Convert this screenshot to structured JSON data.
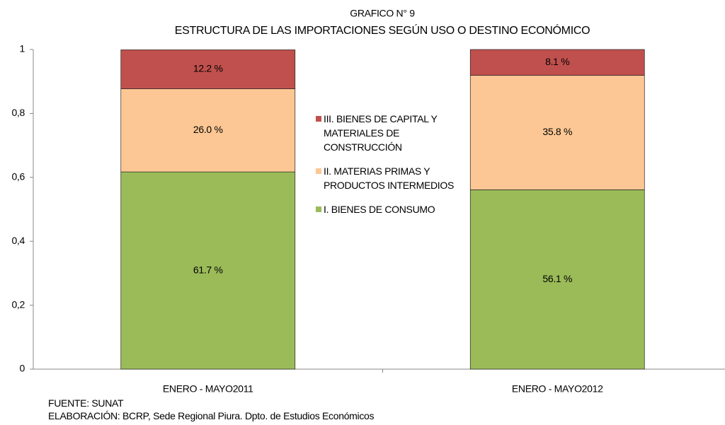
{
  "chart_data": {
    "type": "stacked_bar",
    "title": "GRAFICO N° 9",
    "subtitle": "ESTRUCTURA DE LAS IMPORTACIONES SEGÚN USO O DESTINO ECONÓMICO",
    "categories": [
      "ENERO - MAYO2011",
      "ENERO - MAYO2012"
    ],
    "series": [
      {
        "name": "I. BIENES DE CONSUMO",
        "color": "#9bbb59",
        "values": [
          0.617,
          0.561
        ],
        "value_labels": [
          "61.7 %",
          "56.1 %"
        ]
      },
      {
        "name": "II. MATERIAS PRIMAS Y PRODUCTOS INTERMEDIOS",
        "color": "#fcc794",
        "values": [
          0.26,
          0.358
        ],
        "value_labels": [
          "26.0 %",
          "35.8 %"
        ]
      },
      {
        "name": "III. BIENES DE CAPITAL Y MATERIALES DE CONSTRUCCIÓN",
        "color": "#c0504d",
        "values": [
          0.122,
          0.081
        ],
        "value_labels": [
          "12.2 %",
          "8.1 %"
        ]
      }
    ],
    "ylim": [
      0,
      1
    ],
    "yticks": [
      0,
      {
        "value": 0.2,
        "label": "0,2"
      },
      {
        "value": 0.4,
        "label": "0,4"
      },
      {
        "value": 0.6,
        "label": "0,6"
      },
      {
        "value": 0.8,
        "label": "0,8"
      },
      1
    ],
    "notes": [
      "FUENTE: SUNAT",
      "ELABORACIÓN: BCRP, Sede Regional Piura. Dpto. de Estudios Económicos"
    ]
  }
}
